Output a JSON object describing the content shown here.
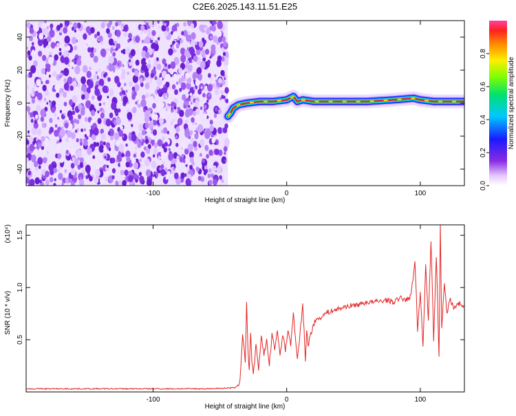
{
  "title": "C2E6.2025.143.11.51.E25",
  "colors": {
    "spectrogram_noise": "#7b2fe0",
    "spectrogram_ridge_core": "#e8203a",
    "snr_line": "#e32222",
    "axis": "#000000"
  },
  "chart_data": [
    {
      "type": "heatmap",
      "title": "C2E6.2025.143.11.51.E25",
      "xlabel": "Height of straight line (km)",
      "ylabel": "Frequency (Hz)",
      "xlim": [
        -195,
        133
      ],
      "ylim": [
        -50,
        50
      ],
      "x_ticks": [
        "-100",
        "0",
        "100"
      ],
      "y_ticks": [
        "-40",
        "-20",
        "0",
        "20",
        "40"
      ],
      "noise_region_x": [
        -195,
        -44
      ],
      "ridge": {
        "x": [
          -44,
          -42,
          -40,
          -36,
          -30,
          -20,
          -10,
          0,
          5,
          8,
          12,
          20,
          40,
          60,
          80,
          95,
          100,
          110,
          120,
          133
        ],
        "freq": [
          -8,
          -6,
          -3,
          -1,
          0,
          1,
          1,
          2,
          4,
          1,
          2,
          1,
          1,
          1,
          2,
          3,
          2,
          1,
          1,
          1
        ]
      },
      "colorbar": {
        "label": "Normalized spectral amplitude",
        "range": [
          0,
          1
        ],
        "ticks": [
          "0.0",
          "0.2",
          "0.4",
          "0.6",
          "0.8"
        ]
      }
    },
    {
      "type": "line",
      "xlabel": "Height of straight line (km)",
      "ylabel": "SNR (10 * v/v)",
      "y_multiplier": "(x10⁴)",
      "xlim": [
        -195,
        133
      ],
      "ylim": [
        0,
        1.6
      ],
      "x_ticks": [
        "-100",
        "0",
        "100"
      ],
      "y_ticks": [
        "0.5",
        "1.0",
        "1.5"
      ],
      "series": [
        {
          "x": [
            -195,
            -150,
            -100,
            -60,
            -38,
            -35,
            -33,
            -31,
            -30,
            -29,
            -28,
            -27,
            -26,
            -25,
            -23,
            -21,
            -19,
            -17,
            -15,
            -13,
            -11,
            -9,
            -7,
            -5,
            -3,
            -1,
            1,
            3,
            5,
            8,
            10,
            12,
            14,
            15,
            16,
            18,
            20,
            23,
            26,
            30,
            35,
            40,
            45,
            50,
            55,
            60,
            65,
            70,
            75,
            80,
            85,
            90,
            93,
            96,
            98,
            100,
            102,
            104,
            106,
            108,
            110,
            112,
            114,
            115,
            116,
            118,
            120,
            122,
            125,
            128,
            133
          ],
          "y": [
            0.03,
            0.03,
            0.03,
            0.03,
            0.04,
            0.1,
            0.55,
            0.3,
            0.85,
            0.4,
            0.2,
            0.55,
            0.3,
            0.15,
            0.45,
            0.2,
            0.55,
            0.35,
            0.5,
            0.25,
            0.55,
            0.4,
            0.6,
            0.35,
            0.55,
            0.4,
            0.6,
            0.45,
            0.75,
            0.3,
            0.55,
            0.85,
            0.3,
            0.6,
            0.45,
            0.55,
            0.65,
            0.7,
            0.72,
            0.76,
            0.78,
            0.8,
            0.82,
            0.83,
            0.84,
            0.86,
            0.86,
            0.87,
            0.88,
            0.86,
            0.9,
            0.88,
            0.92,
            1.25,
            0.6,
            0.95,
            0.45,
            1.2,
            0.7,
            1.45,
            0.5,
            1.3,
            0.35,
            1.6,
            0.6,
            1.05,
            0.75,
            0.9,
            0.8,
            0.85,
            0.83
          ]
        }
      ]
    }
  ]
}
